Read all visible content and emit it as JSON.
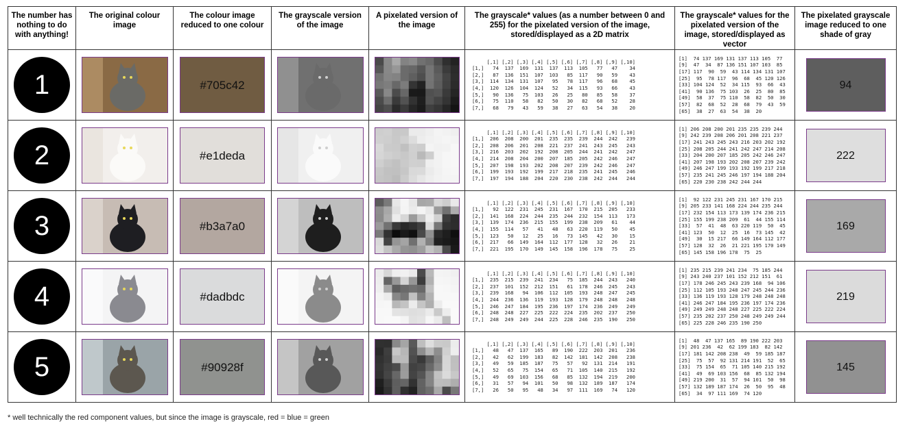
{
  "headers": [
    "The number has nothing to do with anything!",
    "The original colour image",
    "The colour image reduced to one colour",
    "The grayscale version of the image",
    "A pixelated version of the image",
    "The grayscale* values (as a number between 0 and 255) for the pixelated version of the image, stored/displayed as a 2D matrix",
    "The grayscale* values for the pixelated version of the image, stored/displayed as vector",
    "The pixelated grayscale image reduced to one shade of gray"
  ],
  "rows": [
    {
      "number": "1",
      "hex": "#705c42",
      "swatch_color": "#705c42",
      "gray_value": "94",
      "gray_color": "#5e5e5e",
      "photo": {
        "bg": "#8a6a45",
        "cat": "#6a6a66",
        "light": "#c9a67a"
      },
      "matrix_text": "     [,1] [,2] [,3] [,4] [,5] [,6] [,7] [,8] [,9] [,10]\n[1,]   74  137  169  131  137  113  105   77   47    34\n[2,]   87  136  151  107  103   85  117   90   59    43\n[3,]  114  134  131  107   95   78  117   96   68    45\n[4,]  120  126  104  124   52   34  115   93   66    43\n[5,]   90  136   75  103   26   25   80   85   58    37\n[6,]   75  110   58   82   50   30   82   68   52    28\n[7,]   68   79   43   59   38   27   63   54   38    20",
      "vector_text": "[1]  74 137 169 131 137 113 105  77\n[9]  47  34  87 136 151 107 103  85\n[17] 117  90  59  43 114 134 131 107\n[25]  95  78 117  96  68  45 120 126\n[33] 104 124  52  34 115  93  66  43\n[41]  90 136  75 103  26  25  80  85\n[49]  58  37  75 110  58  82  50  30\n[57]  82  68  52  28  68  79  43  59\n[65]  38  27  63  54  38  20",
      "pixels": [
        [
          74,
          137,
          169,
          131,
          137,
          113,
          105,
          77,
          47,
          34
        ],
        [
          87,
          136,
          151,
          107,
          103,
          85,
          117,
          90,
          59,
          43
        ],
        [
          114,
          134,
          131,
          107,
          95,
          78,
          117,
          96,
          68,
          45
        ],
        [
          120,
          126,
          104,
          124,
          52,
          34,
          115,
          93,
          66,
          43
        ],
        [
          90,
          136,
          75,
          103,
          26,
          25,
          80,
          85,
          58,
          37
        ],
        [
          75,
          110,
          58,
          82,
          50,
          30,
          82,
          68,
          52,
          28
        ],
        [
          68,
          79,
          43,
          59,
          38,
          27,
          63,
          54,
          38,
          20
        ]
      ]
    },
    {
      "number": "2",
      "hex": "#e1deda",
      "swatch_color": "#e1deda",
      "gray_value": "222",
      "gray_color": "#dedede",
      "photo": {
        "bg": "#f2efec",
        "cat": "#fbfaf8",
        "light": "#e4ddd6"
      },
      "matrix_text": "     [,1] [,2] [,3] [,4] [,5] [,6] [,7] [,8] [,9] [,10]\n[1,]  206  208  200  201  235  235  239  244  242   239\n[2,]  208  206  201  208  221  237  241  243  245   243\n[3,]  216  203  202  192  208  205  244  241  242   247\n[4,]  214  208  204  200  207  185  205  242  246   247\n[5,]  207  198  193  202  208  207  239  242  246   247\n[6,]  199  193  192  199  217  218  235  241  245   246\n[7,]  197  194  188  204  220  230  238  242  244   244",
      "vector_text": "[1] 206 208 200 201 235 235 239 244\n[9] 242 239 208 206 201 208 221 237\n[17] 241 243 245 243 216 203 202 192\n[25] 208 205 244 241 242 247 214 208\n[33] 204 200 207 185 205 242 246 247\n[41] 207 198 193 202 208 207 239 242\n[49] 246 247 199 193 192 199 217 218\n[57] 235 241 245 246 197 194 188 204\n[65] 220 230 238 242 244 244",
      "pixels": [
        [
          206,
          208,
          200,
          201,
          235,
          235,
          239,
          244,
          242,
          239
        ],
        [
          208,
          206,
          201,
          208,
          221,
          237,
          241,
          243,
          245,
          243
        ],
        [
          216,
          203,
          202,
          192,
          208,
          205,
          244,
          241,
          242,
          247
        ],
        [
          214,
          208,
          204,
          200,
          207,
          185,
          205,
          242,
          246,
          247
        ],
        [
          207,
          198,
          193,
          202,
          208,
          207,
          239,
          242,
          246,
          247
        ],
        [
          199,
          193,
          192,
          199,
          217,
          218,
          235,
          241,
          245,
          246
        ],
        [
          197,
          194,
          188,
          204,
          220,
          230,
          238,
          242,
          244,
          244
        ]
      ]
    },
    {
      "number": "3",
      "hex": "#b3a7a0",
      "swatch_color": "#b3a7a0",
      "gray_value": "169",
      "gray_color": "#a9a9a9",
      "photo": {
        "bg": "#c7bcb4",
        "cat": "#1e1e22",
        "light": "#eae4df"
      },
      "matrix_text": "     [,1] [,2] [,3] [,4] [,5] [,6] [,7] [,8] [,9] [,10]\n[1,]   92  122  231  245  231  167  170  215  205   233\n[2,]  141  168  224  244  235  244  232  154  113   173\n[3,]  139  174  236  215  155  199  238  209   61    44\n[4,]  155  114   57   41   48   63  220  119   50    45\n[5,]  123   50   12   25   16   73  145   42   30    15\n[6,]  217   66  149  164  112  177  128   32   26    21\n[7,]  221  195  170  149  145  158  196  178   75    25",
      "vector_text": "[1]  92 122 231 245 231 167 170 215\n[9] 205 233 141 168 224 244 235 244\n[17] 232 154 113 173 139 174 236 215\n[25] 155 199 238 209  61  44 155 114\n[33]  57  41  48  63 220 119  50  45\n[41] 123  50  12  25  16  73 145  42\n[49]  30  15 217  66 149 164 112 177\n[57] 128  32  26  21 221 195 170 149\n[65] 145 158 196 178  75  25",
      "pixels": [
        [
          92,
          122,
          231,
          245,
          231,
          167,
          170,
          215,
          205,
          233
        ],
        [
          141,
          168,
          224,
          244,
          235,
          244,
          232,
          154,
          113,
          173
        ],
        [
          139,
          174,
          236,
          215,
          155,
          199,
          238,
          209,
          61,
          44
        ],
        [
          155,
          114,
          57,
          41,
          48,
          63,
          220,
          119,
          50,
          45
        ],
        [
          123,
          50,
          12,
          25,
          16,
          73,
          145,
          42,
          30,
          15
        ],
        [
          217,
          66,
          149,
          164,
          112,
          177,
          128,
          32,
          26,
          21
        ],
        [
          221,
          195,
          170,
          149,
          145,
          158,
          196,
          178,
          75,
          25
        ]
      ]
    },
    {
      "number": "4",
      "hex": "#dadbdc",
      "swatch_color": "#dadbdc",
      "gray_value": "219",
      "gray_color": "#dbdbdb",
      "photo": {
        "bg": "#f4f4f5",
        "cat": "#8a8a90",
        "light": "#ffffff"
      },
      "matrix_text": "     [,1] [,2] [,3] [,4] [,5] [,6] [,7] [,8] [,9] [,10]\n[1,]  235  215  239  241  234   75  185  244  243   240\n[2,]  237  101  152  212  151   61  178  246  245   243\n[3,]  239  168   94  106  112  105  193  248  247   245\n[4,]  244  236  136  119  193  128  179  248  248   248\n[5,]  246  247  184  195  236  197  174  236  249   249\n[6,]  248  248  227  225  222  224  235  202  237   250\n[7,]  248  249  249  244  225  228  246  235  190   250",
      "vector_text": "[1] 235 215 239 241 234  75 185 244\n[9] 243 240 237 101 152 212 151  61\n[17] 178 246 245 243 239 168  94 106\n[25] 112 105 193 248 247 245 244 236\n[33] 136 119 193 128 179 248 248 248\n[41] 246 247 184 195 236 197 174 236\n[49] 249 249 248 248 227 225 222 224\n[57] 235 202 237 250 248 249 249 244\n[65] 225 228 246 235 190 250",
      "pixels": [
        [
          235,
          215,
          239,
          241,
          234,
          75,
          185,
          244,
          243,
          240
        ],
        [
          237,
          101,
          152,
          212,
          151,
          61,
          178,
          246,
          245,
          243
        ],
        [
          239,
          168,
          94,
          106,
          112,
          105,
          193,
          248,
          247,
          245
        ],
        [
          244,
          236,
          136,
          119,
          193,
          128,
          179,
          248,
          248,
          248
        ],
        [
          246,
          247,
          184,
          195,
          236,
          197,
          174,
          236,
          249,
          249
        ],
        [
          248,
          248,
          227,
          225,
          222,
          224,
          235,
          202,
          237,
          250
        ],
        [
          248,
          249,
          249,
          244,
          225,
          228,
          246,
          235,
          190,
          250
        ]
      ]
    },
    {
      "number": "5",
      "hex": "#90928f",
      "swatch_color": "#90928f",
      "gray_value": "145",
      "gray_color": "#919191",
      "photo": {
        "bg": "#9aa4a8",
        "cat": "#5c574f",
        "light": "#dfe6e8"
      },
      "matrix_text": "     [,1] [,2] [,3] [,4] [,5] [,6] [,7] [,8] [,9] [,10]\n[1,]   48   47  137  165   89  190  222  203  201   236\n[2,]   42   62  199  183   82  142  181  142  208   238\n[3,]   49   59  185  187   75   57   92  131  214   191\n[4,]   52   65   75  154   65   71  105  140  215   192\n[5,]   49   69  103  156   68   85  132  194  219   200\n[6,]   31   57   94  101   50   98  132  189  187   174\n[7,]   26   50   95   48   34   97  111  169   74   120",
      "vector_text": "[1]  48  47 137 165  89 190 222 203\n[9] 201 236  42  62 199 183  82 142\n[17] 181 142 208 238  49  59 185 187\n[25]  75  57  92 131 214 191  52  65\n[33]  75 154  65  71 105 140 215 192\n[41]  49  69 103 156  68  85 132 194\n[49] 219 200  31  57  94 101  50  98\n[57] 132 189 187 174  26  50  95  48\n[65]  34  97 111 169  74 120",
      "pixels": [
        [
          48,
          47,
          137,
          165,
          89,
          190,
          222,
          203,
          201,
          236
        ],
        [
          42,
          62,
          199,
          183,
          82,
          142,
          181,
          142,
          208,
          238
        ],
        [
          49,
          59,
          185,
          187,
          75,
          57,
          92,
          131,
          214,
          191
        ],
        [
          52,
          65,
          75,
          154,
          65,
          71,
          105,
          140,
          215,
          192
        ],
        [
          49,
          69,
          103,
          156,
          68,
          85,
          132,
          194,
          219,
          200
        ],
        [
          31,
          57,
          94,
          101,
          50,
          98,
          132,
          189,
          187,
          174
        ],
        [
          26,
          50,
          95,
          48,
          34,
          97,
          111,
          169,
          74,
          120
        ]
      ]
    }
  ],
  "footnote": "* well technically the red component values, but since the image is grayscale, red = blue = green"
}
